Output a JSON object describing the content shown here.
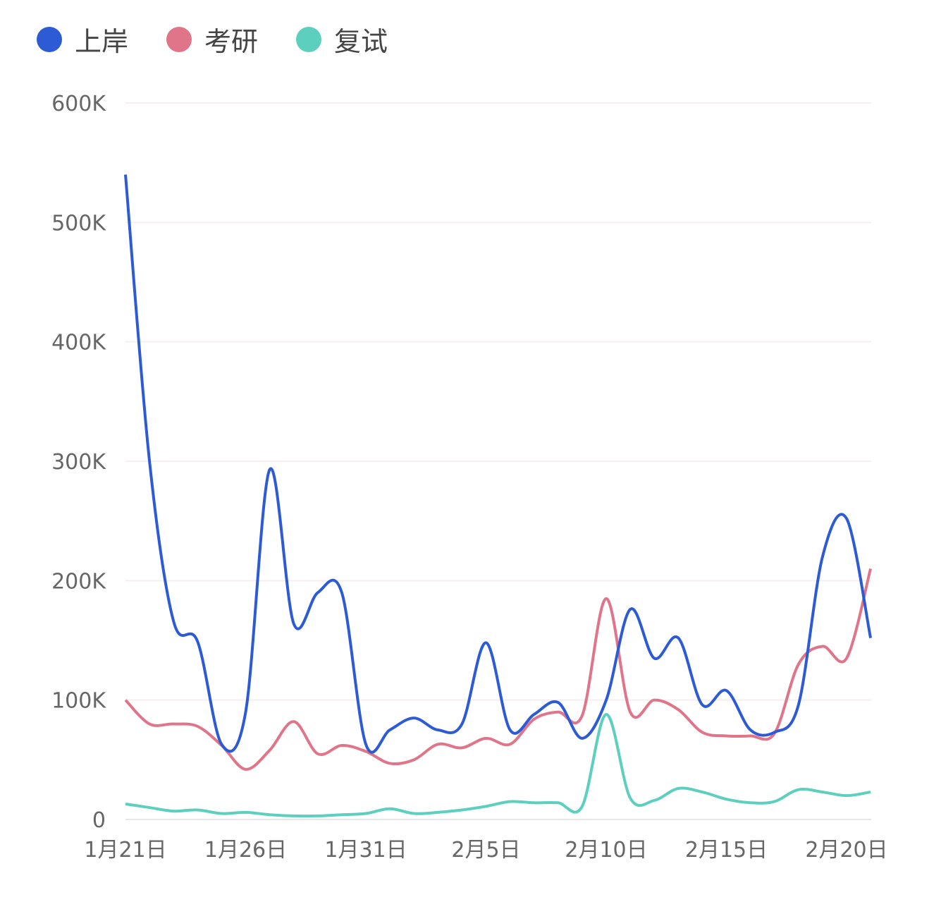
{
  "chart_data": {
    "type": "line",
    "title": "",
    "xlabel": "",
    "ylabel": "",
    "x": [
      "1月21日",
      "1月22日",
      "1月23日",
      "1月24日",
      "1月25日",
      "1月26日",
      "1月27日",
      "1月28日",
      "1月29日",
      "1月30日",
      "1月31日",
      "2月1日",
      "2月2日",
      "2月3日",
      "2月4日",
      "2月5日",
      "2月6日",
      "2月7日",
      "2月8日",
      "2月9日",
      "2月10日",
      "2月11日",
      "2月12日",
      "2月13日",
      "2月14日",
      "2月15日",
      "2月16日",
      "2月17日",
      "2月18日",
      "2月19日",
      "2月20日",
      "2月21日"
    ],
    "x_tick_labels": [
      "1月21日",
      "1月26日",
      "1月31日",
      "2月5日",
      "2月10日",
      "2月15日",
      "2月20日"
    ],
    "y_tick_labels": [
      "0",
      "100K",
      "200K",
      "300K",
      "400K",
      "500K",
      "600K"
    ],
    "ylim": [
      0,
      600000
    ],
    "grid": true,
    "legend_position": "top-left",
    "series": [
      {
        "name": "上岸",
        "color": "#2d5bd6",
        "values": [
          540000,
          300000,
          166000,
          149000,
          63000,
          90000,
          293000,
          164000,
          190000,
          190000,
          63000,
          75000,
          85000,
          75000,
          80000,
          148000,
          75000,
          88000,
          98000,
          68000,
          100000,
          176000,
          135000,
          152000,
          96000,
          108000,
          75000,
          73000,
          96000,
          220000,
          252000,
          152000
        ]
      },
      {
        "name": "考研",
        "color": "#e07589",
        "values": [
          100000,
          80000,
          80000,
          78000,
          62000,
          42000,
          58000,
          82000,
          55000,
          62000,
          57000,
          47000,
          50000,
          63000,
          60000,
          68000,
          63000,
          84000,
          90000,
          87000,
          185000,
          90000,
          100000,
          92000,
          73000,
          70000,
          70000,
          72000,
          130000,
          145000,
          135000,
          210000
        ]
      },
      {
        "name": "复试",
        "color": "#5ccfbf",
        "values": [
          13000,
          10000,
          7000,
          8000,
          5000,
          6000,
          4000,
          3000,
          3000,
          4000,
          5000,
          9000,
          5000,
          6000,
          8000,
          11000,
          15000,
          14000,
          14000,
          11000,
          88000,
          18000,
          16000,
          26000,
          23000,
          17000,
          14000,
          15000,
          25000,
          23000,
          20000,
          23000
        ]
      }
    ]
  }
}
